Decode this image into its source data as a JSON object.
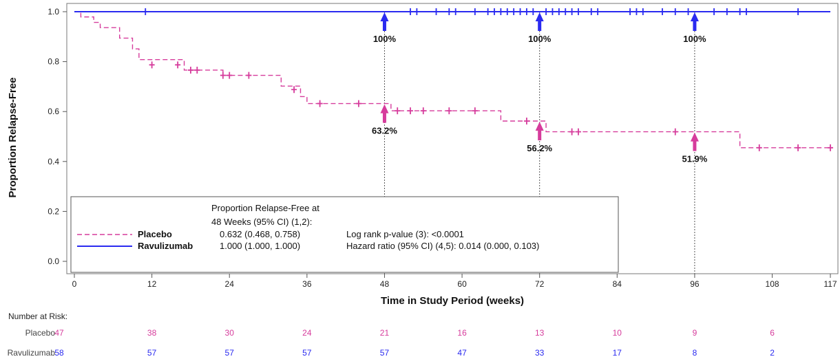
{
  "chart_data": {
    "type": "line",
    "subtype": "kaplan-meier",
    "xlabel": "Time in Study Period (weeks)",
    "ylabel": "Proportion Relapse-Free",
    "xlim": [
      0,
      117
    ],
    "ylim": [
      0.0,
      1.0
    ],
    "x_ticks": [
      "0",
      "12",
      "24",
      "36",
      "48",
      "60",
      "72",
      "84",
      "96",
      "108",
      "117"
    ],
    "y_ticks": [
      "0.0",
      "0.2",
      "0.4",
      "0.6",
      "0.8",
      "1.0"
    ],
    "reference_lines_x": [
      48,
      72,
      96
    ],
    "series": [
      {
        "name": "Placebo",
        "color": "#d63c9c",
        "style": "dashed",
        "steps": [
          [
            0,
            1.0
          ],
          [
            1,
            0.979
          ],
          [
            3,
            0.957
          ],
          [
            4,
            0.936
          ],
          [
            7,
            0.894
          ],
          [
            9,
            0.851
          ],
          [
            10,
            0.808
          ],
          [
            17,
            0.766
          ],
          [
            23,
            0.745
          ],
          [
            32,
            0.702
          ],
          [
            35,
            0.66
          ],
          [
            36,
            0.632
          ],
          [
            48,
            0.632
          ],
          [
            49,
            0.603
          ],
          [
            66,
            0.562
          ],
          [
            72,
            0.562
          ],
          [
            73,
            0.519
          ],
          [
            96,
            0.519
          ],
          [
            103,
            0.455
          ],
          [
            117,
            0.455
          ]
        ],
        "censored": [
          [
            12,
            0.787
          ],
          [
            16,
            0.787
          ],
          [
            18,
            0.766
          ],
          [
            19,
            0.766
          ],
          [
            23,
            0.745
          ],
          [
            24,
            0.745
          ],
          [
            27,
            0.745
          ],
          [
            34,
            0.688
          ],
          [
            38,
            0.632
          ],
          [
            44,
            0.632
          ],
          [
            50,
            0.603
          ],
          [
            52,
            0.603
          ],
          [
            54,
            0.603
          ],
          [
            58,
            0.603
          ],
          [
            62,
            0.603
          ],
          [
            70,
            0.562
          ],
          [
            77,
            0.519
          ],
          [
            78,
            0.519
          ],
          [
            93,
            0.519
          ],
          [
            106,
            0.455
          ],
          [
            112,
            0.455
          ],
          [
            117,
            0.455
          ]
        ]
      },
      {
        "name": "Ravulizumab",
        "color": "#2a2af0",
        "style": "solid",
        "steps": [
          [
            0,
            1.0
          ],
          [
            117,
            1.0
          ]
        ],
        "censored": [
          [
            11,
            1.0
          ],
          [
            52,
            1.0
          ],
          [
            53,
            1.0
          ],
          [
            56,
            1.0
          ],
          [
            58,
            1.0
          ],
          [
            59,
            1.0
          ],
          [
            62,
            1.0
          ],
          [
            64,
            1.0
          ],
          [
            65,
            1.0
          ],
          [
            66,
            1.0
          ],
          [
            67,
            1.0
          ],
          [
            68,
            1.0
          ],
          [
            69,
            1.0
          ],
          [
            70,
            1.0
          ],
          [
            71,
            1.0
          ],
          [
            73,
            1.0
          ],
          [
            74,
            1.0
          ],
          [
            75,
            1.0
          ],
          [
            76,
            1.0
          ],
          [
            77,
            1.0
          ],
          [
            78,
            1.0
          ],
          [
            80,
            1.0
          ],
          [
            81,
            1.0
          ],
          [
            86,
            1.0
          ],
          [
            87,
            1.0
          ],
          [
            88,
            1.0
          ],
          [
            91,
            1.0
          ],
          [
            93,
            1.0
          ],
          [
            95,
            1.0
          ],
          [
            99,
            1.0
          ],
          [
            101,
            1.0
          ],
          [
            103,
            1.0
          ],
          [
            104,
            1.0
          ],
          [
            112,
            1.0
          ]
        ]
      }
    ],
    "annotations": [
      {
        "series": "Placebo",
        "x": 48,
        "y": 0.632,
        "label": "63.2%"
      },
      {
        "series": "Placebo",
        "x": 72,
        "y": 0.562,
        "label": "56.2%"
      },
      {
        "series": "Placebo",
        "x": 96,
        "y": 0.519,
        "label": "51.9%"
      },
      {
        "series": "Ravulizumab",
        "x": 48,
        "y": 1.0,
        "label": "100%"
      },
      {
        "series": "Ravulizumab",
        "x": 72,
        "y": 1.0,
        "label": "100%"
      },
      {
        "series": "Ravulizumab",
        "x": 96,
        "y": 1.0,
        "label": "100%"
      }
    ],
    "legend": {
      "placement": "bottom-left",
      "header_line1": "Proportion Relapse-Free at",
      "header_line2": "48 Weeks (95% CI) (1,2):",
      "rows": [
        {
          "name": "Placebo",
          "value": "0.632 (0.468, 0.758)",
          "stat": "Log rank p-value (3):  <0.0001"
        },
        {
          "name": "Ravulizumab",
          "value": "1.000 (1.000, 1.000)",
          "stat": "Hazard ratio (95% CI) (4,5): 0.014 (0.000, 0.103)"
        }
      ]
    },
    "risk_table": {
      "title": "Number at Risk:",
      "x": [
        0,
        12,
        24,
        36,
        48,
        60,
        72,
        84,
        96,
        108
      ],
      "rows": [
        {
          "label": "Placebo",
          "color": "#d63c9c",
          "values": [
            "47",
            "38",
            "30",
            "24",
            "21",
            "16",
            "13",
            "10",
            "9",
            "6"
          ]
        },
        {
          "label": "Ravulizumab",
          "color": "#2a2af0",
          "values": [
            "58",
            "57",
            "57",
            "57",
            "57",
            "47",
            "33",
            "17",
            "8",
            "2"
          ]
        }
      ]
    }
  }
}
